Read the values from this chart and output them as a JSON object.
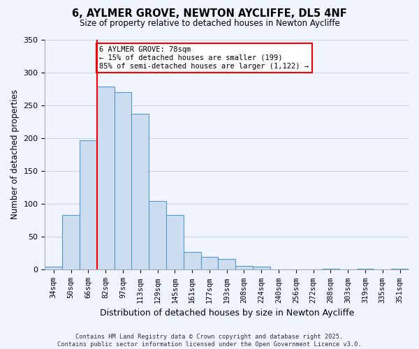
{
  "title": "6, AYLMER GROVE, NEWTON AYCLIFFE, DL5 4NF",
  "subtitle": "Size of property relative to detached houses in Newton Aycliffe",
  "xlabel": "Distribution of detached houses by size in Newton Aycliffe",
  "ylabel": "Number of detached properties",
  "bar_values": [
    5,
    83,
    197,
    278,
    270,
    237,
    104,
    83,
    27,
    20,
    16,
    6,
    5,
    0,
    0,
    0,
    2,
    0,
    2,
    0,
    2
  ],
  "bar_labels": [
    "34sqm",
    "50sqm",
    "66sqm",
    "82sqm",
    "97sqm",
    "113sqm",
    "129sqm",
    "145sqm",
    "161sqm",
    "177sqm",
    "193sqm",
    "208sqm",
    "224sqm",
    "240sqm",
    "256sqm",
    "272sqm",
    "288sqm",
    "303sqm",
    "319sqm",
    "335sqm",
    "351sqm"
  ],
  "bar_color": "#ccddf0",
  "bar_edge_color": "#5599cc",
  "ylim": [
    0,
    350
  ],
  "yticks": [
    0,
    50,
    100,
    150,
    200,
    250,
    300,
    350
  ],
  "vline_x_index": 2.5,
  "vline_color": "red",
  "annotation_title": "6 AYLMER GROVE: 78sqm",
  "annotation_line1": "← 15% of detached houses are smaller (199)",
  "annotation_line2": "85% of semi-detached houses are larger (1,122) →",
  "annotation_box_color": "white",
  "annotation_box_edge": "red",
  "footer_line1": "Contains HM Land Registry data © Crown copyright and database right 2025.",
  "footer_line2": "Contains public sector information licensed under the Open Government Licence v3.0.",
  "bg_color": "#f0f4ff",
  "grid_color": "#c8d4e8"
}
